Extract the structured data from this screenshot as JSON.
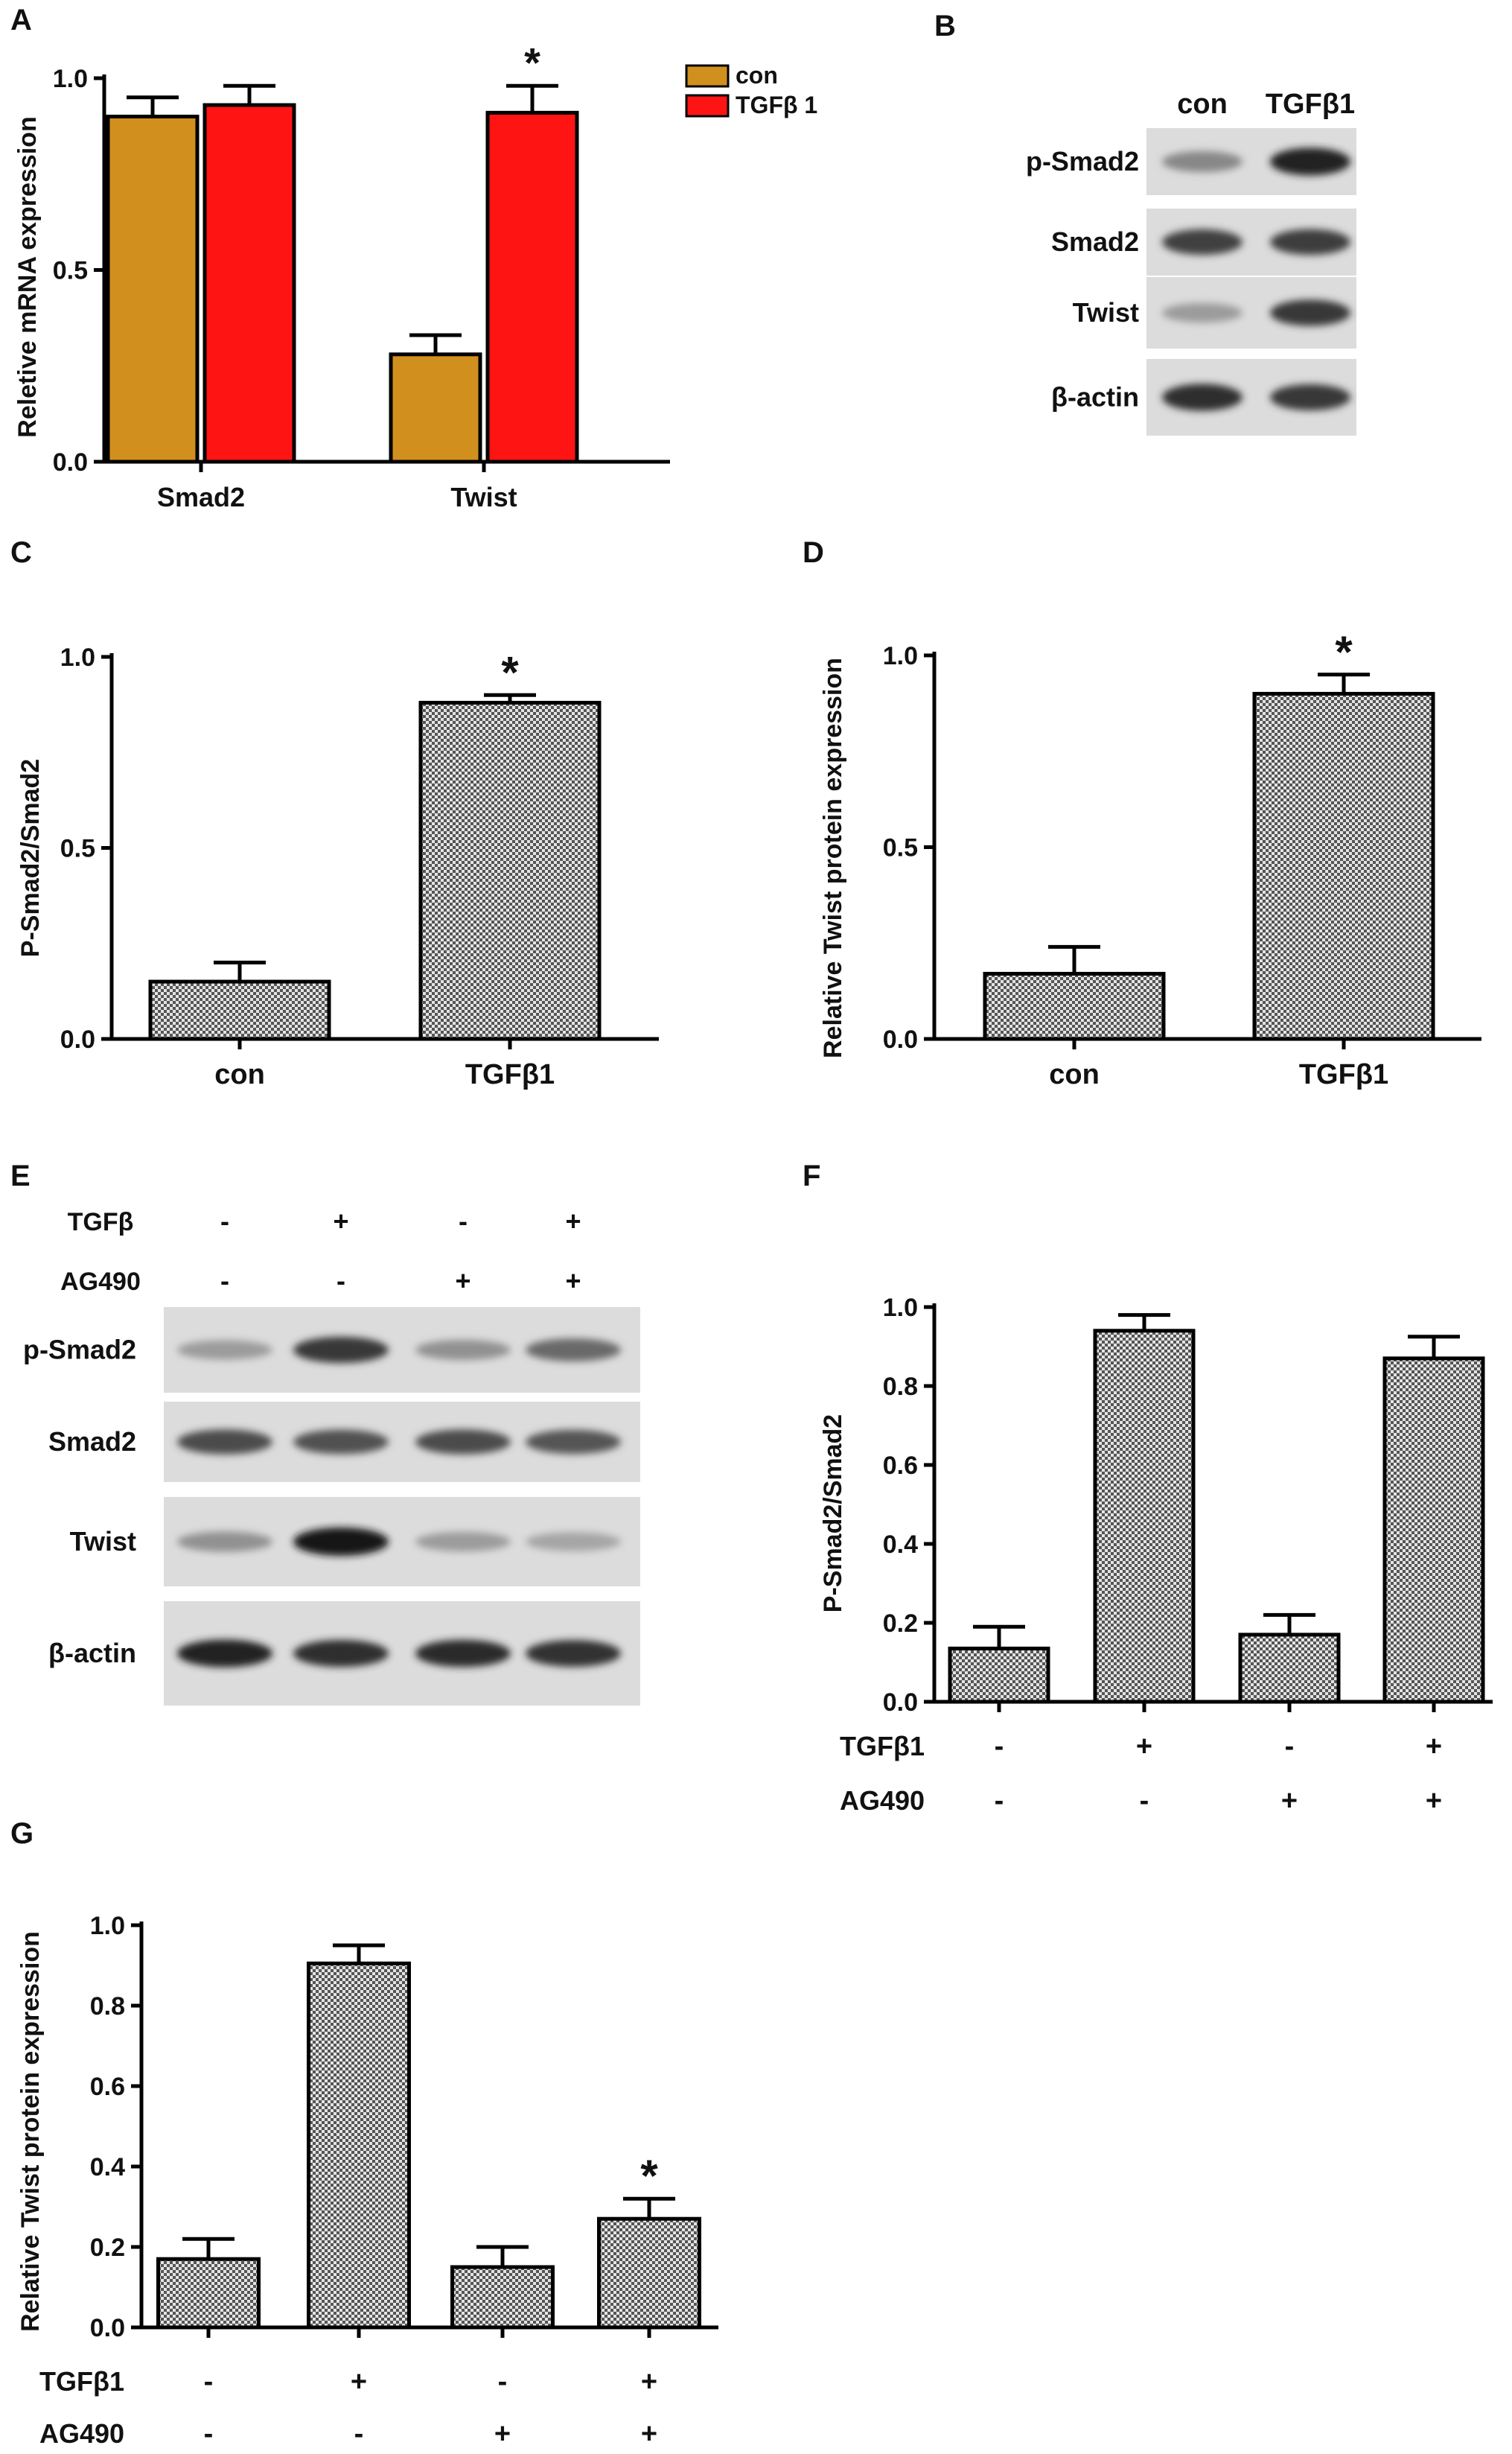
{
  "colors": {
    "con": "#D18F1E",
    "tgfb": "#FF1414",
    "hatch_dark": "#555555",
    "hatch_light": "#e4e4e4"
  },
  "panels": {
    "A": {
      "letter": "A"
    },
    "B": {
      "letter": "B"
    },
    "C": {
      "letter": "C"
    },
    "D": {
      "letter": "D"
    },
    "E": {
      "letter": "E"
    },
    "F": {
      "letter": "F"
    },
    "G": {
      "letter": "G"
    }
  },
  "blot_B": {
    "columns": [
      "con",
      "TGFβ1"
    ],
    "rows": [
      {
        "label": "p-Smad2",
        "intensity": [
          0.45,
          0.95
        ]
      },
      {
        "label": "Smad2",
        "intensity": [
          0.8,
          0.82
        ]
      },
      {
        "label": "Twist",
        "intensity": [
          0.35,
          0.85
        ]
      },
      {
        "label": "β-actin",
        "intensity": [
          0.9,
          0.85
        ]
      }
    ]
  },
  "blot_E": {
    "conditions": [
      {
        "label": "TGFβ",
        "values": [
          "-",
          "+",
          "-",
          "+"
        ]
      },
      {
        "label": "AG490",
        "values": [
          "-",
          "-",
          "+",
          "+"
        ]
      }
    ],
    "rows": [
      {
        "label": "p-Smad2",
        "intensity": [
          0.35,
          0.85,
          0.4,
          0.6
        ]
      },
      {
        "label": "Smad2",
        "intensity": [
          0.75,
          0.72,
          0.75,
          0.7
        ]
      },
      {
        "label": "Twist",
        "intensity": [
          0.4,
          1.0,
          0.35,
          0.3
        ]
      },
      {
        "label": "β-actin",
        "intensity": [
          0.95,
          0.9,
          0.92,
          0.88
        ]
      }
    ]
  },
  "chart_data": [
    {
      "id": "A",
      "type": "bar",
      "categories": [
        "Smad2",
        "Twist"
      ],
      "series": [
        {
          "name": "con",
          "values": [
            0.9,
            0.28
          ],
          "errors": [
            0.05,
            0.05
          ]
        },
        {
          "name": "TGFβ 1",
          "values": [
            0.93,
            0.91
          ],
          "errors": [
            0.05,
            0.07
          ]
        }
      ],
      "ylabel": "Reletive mRNA expression",
      "ylim": [
        0,
        1.0
      ],
      "yticks": [
        "0.0",
        "0.5",
        "1.0"
      ],
      "annotations": [
        {
          "category": 1,
          "series": 1,
          "text": "*"
        }
      ],
      "legend_position": "top-right"
    },
    {
      "id": "C",
      "type": "bar",
      "categories": [
        "con",
        "TGFβ1"
      ],
      "values": [
        0.15,
        0.88
      ],
      "errors": [
        0.05,
        0.02
      ],
      "ylabel": "P-Smad2/Smad2",
      "ylim": [
        0,
        1.0
      ],
      "yticks": [
        "0.0",
        "0.5",
        "1.0"
      ],
      "annotations": [
        {
          "index": 1,
          "text": "*"
        }
      ]
    },
    {
      "id": "D",
      "type": "bar",
      "categories": [
        "con",
        "TGFβ1"
      ],
      "values": [
        0.17,
        0.9
      ],
      "errors": [
        0.07,
        0.05
      ],
      "ylabel": "Relative Twist protein expression",
      "ylim": [
        0,
        1.0
      ],
      "yticks": [
        "0.0",
        "0.5",
        "1.0"
      ],
      "annotations": [
        {
          "index": 1,
          "text": "*"
        }
      ]
    },
    {
      "id": "F",
      "type": "bar",
      "values": [
        0.135,
        0.94,
        0.17,
        0.87
      ],
      "errors": [
        0.055,
        0.04,
        0.05,
        0.055
      ],
      "ylabel": "P-Smad2/Smad2",
      "ylim": [
        0,
        1.0
      ],
      "yticks": [
        "0.0",
        "0.2",
        "0.4",
        "0.6",
        "0.8",
        "1.0"
      ],
      "conditions": [
        {
          "label": "TGFβ1",
          "values": [
            "-",
            "+",
            "-",
            "+"
          ]
        },
        {
          "label": "AG490",
          "values": [
            "-",
            "-",
            "+",
            "+"
          ]
        }
      ],
      "annotations": []
    },
    {
      "id": "G",
      "type": "bar",
      "values": [
        0.17,
        0.905,
        0.15,
        0.27
      ],
      "errors": [
        0.05,
        0.045,
        0.05,
        0.05
      ],
      "ylabel": "Relative Twist protein expression",
      "ylim": [
        0,
        1.0
      ],
      "yticks": [
        "0.0",
        "0.2",
        "0.4",
        "0.6",
        "0.8",
        "1.0"
      ],
      "conditions": [
        {
          "label": "TGFβ1",
          "values": [
            "-",
            "+",
            "-",
            "+"
          ]
        },
        {
          "label": "AG490",
          "values": [
            "-",
            "-",
            "+",
            "+"
          ]
        }
      ],
      "annotations": [
        {
          "index": 3,
          "text": "*"
        }
      ]
    }
  ]
}
